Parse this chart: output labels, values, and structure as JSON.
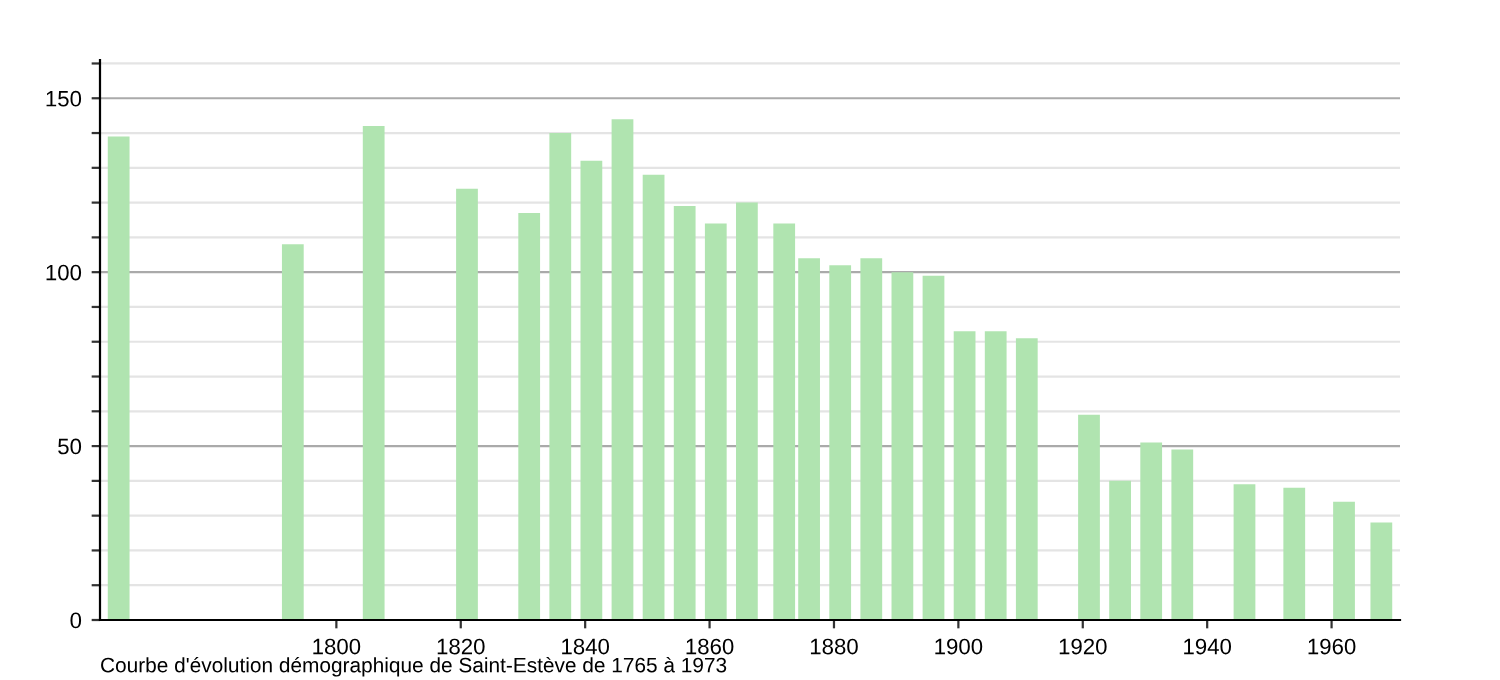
{
  "chart_data": {
    "type": "bar",
    "x": [
      1765,
      1793,
      1806,
      1821,
      1831,
      1836,
      1841,
      1846,
      1851,
      1856,
      1861,
      1866,
      1872,
      1876,
      1881,
      1886,
      1891,
      1896,
      1901,
      1906,
      1911,
      1921,
      1926,
      1931,
      1936,
      1946,
      1954,
      1962,
      1968
    ],
    "values": [
      139,
      108,
      142,
      124,
      117,
      140,
      132,
      144,
      128,
      119,
      114,
      120,
      114,
      104,
      102,
      104,
      100,
      99,
      83,
      83,
      81,
      59,
      40,
      51,
      49,
      39,
      38,
      34,
      28
    ],
    "color": "#b0e4b0",
    "xlim": [
      1762,
      1971
    ],
    "xticks": [
      1800,
      1820,
      1840,
      1860,
      1880,
      1900,
      1920,
      1940,
      1960
    ],
    "ylim": [
      0,
      161
    ],
    "yticks": [
      0,
      {
        "value": 10,
        "label": null
      },
      {
        "value": 20,
        "label": null
      },
      {
        "value": 30,
        "label": null
      },
      {
        "value": 40,
        "label": null
      },
      50,
      {
        "value": 60,
        "label": null
      },
      {
        "value": 70,
        "label": null
      },
      {
        "value": 80,
        "label": null
      },
      {
        "value": 90,
        "label": null
      },
      100,
      {
        "value": 110,
        "label": null
      },
      {
        "value": 120,
        "label": null
      },
      {
        "value": 130,
        "label": null
      },
      {
        "value": 140,
        "label": null
      },
      150,
      {
        "value": 160,
        "label": null
      }
    ],
    "grid": "y",
    "annotations": [
      "Courbe d'évolution démographique de Saint-Estève de 1765 à 1973"
    ]
  }
}
